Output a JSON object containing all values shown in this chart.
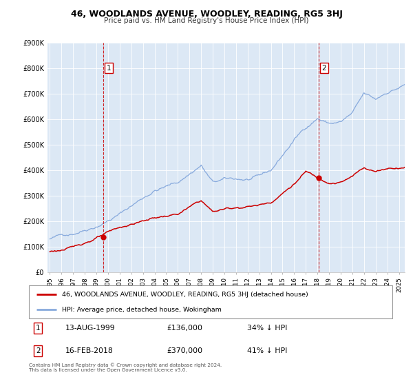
{
  "title": "46, WOODLANDS AVENUE, WOODLEY, READING, RG5 3HJ",
  "subtitle": "Price paid vs. HM Land Registry's House Price Index (HPI)",
  "bg_color": "#dce8f5",
  "red_label": "46, WOODLANDS AVENUE, WOODLEY, READING, RG5 3HJ (detached house)",
  "blue_label": "HPI: Average price, detached house, Wokingham",
  "sale1_box": "1",
  "sale1_date": "13-AUG-1999",
  "sale1_price": "£136,000",
  "sale1_hpi": "34% ↓ HPI",
  "sale2_box": "2",
  "sale2_date": "16-FEB-2018",
  "sale2_price": "£370,000",
  "sale2_hpi": "41% ↓ HPI",
  "footer": "Contains HM Land Registry data © Crown copyright and database right 2024.\nThis data is licensed under the Open Government Licence v3.0.",
  "ylim": [
    0,
    900000
  ],
  "yticks": [
    0,
    100000,
    200000,
    300000,
    400000,
    500000,
    600000,
    700000,
    800000,
    900000
  ],
  "ytick_labels": [
    "£0",
    "£100K",
    "£200K",
    "£300K",
    "£400K",
    "£500K",
    "£600K",
    "£700K",
    "£800K",
    "£900K"
  ],
  "xlim_start": 1994.8,
  "xlim_end": 2025.5,
  "xticks": [
    1995,
    1996,
    1997,
    1998,
    1999,
    2000,
    2001,
    2002,
    2003,
    2004,
    2005,
    2006,
    2007,
    2008,
    2009,
    2010,
    2011,
    2012,
    2013,
    2014,
    2015,
    2016,
    2017,
    2018,
    2019,
    2020,
    2021,
    2022,
    2023,
    2024,
    2025
  ],
  "vline1_x": 1999.62,
  "vline2_x": 2018.12,
  "sale1_dot_x": 1999.62,
  "sale1_dot_y": 136000,
  "sale2_dot_x": 2018.12,
  "sale2_dot_y": 370000,
  "red_color": "#cc0000",
  "blue_color": "#88aadd",
  "vline_color": "#cc0000",
  "marker_color": "#cc0000",
  "hpi_control_years": [
    1995,
    1997,
    1999,
    2001,
    2004,
    2006,
    2008,
    2009,
    2010,
    2012,
    2013,
    2014,
    2016,
    2017,
    2018,
    2019,
    2020,
    2021,
    2022,
    2023,
    2024,
    2025.5
  ],
  "hpi_control_vals": [
    130000,
    155000,
    195000,
    245000,
    340000,
    370000,
    440000,
    370000,
    378000,
    375000,
    380000,
    400000,
    520000,
    570000,
    610000,
    590000,
    595000,
    625000,
    695000,
    668000,
    700000,
    730000
  ],
  "red_control_years": [
    1995,
    1997,
    1999,
    2000,
    2002,
    2004,
    2006,
    2008,
    2009,
    2010,
    2012,
    2013,
    2014,
    2016,
    2017,
    2018,
    2019,
    2020,
    2021,
    2022,
    2023,
    2024,
    2025.5
  ],
  "red_control_vals": [
    80000,
    95000,
    136000,
    152000,
    182000,
    208000,
    222000,
    272000,
    228000,
    238000,
    252000,
    258000,
    272000,
    348000,
    395000,
    370000,
    358000,
    362000,
    382000,
    418000,
    404000,
    418000,
    428000
  ]
}
